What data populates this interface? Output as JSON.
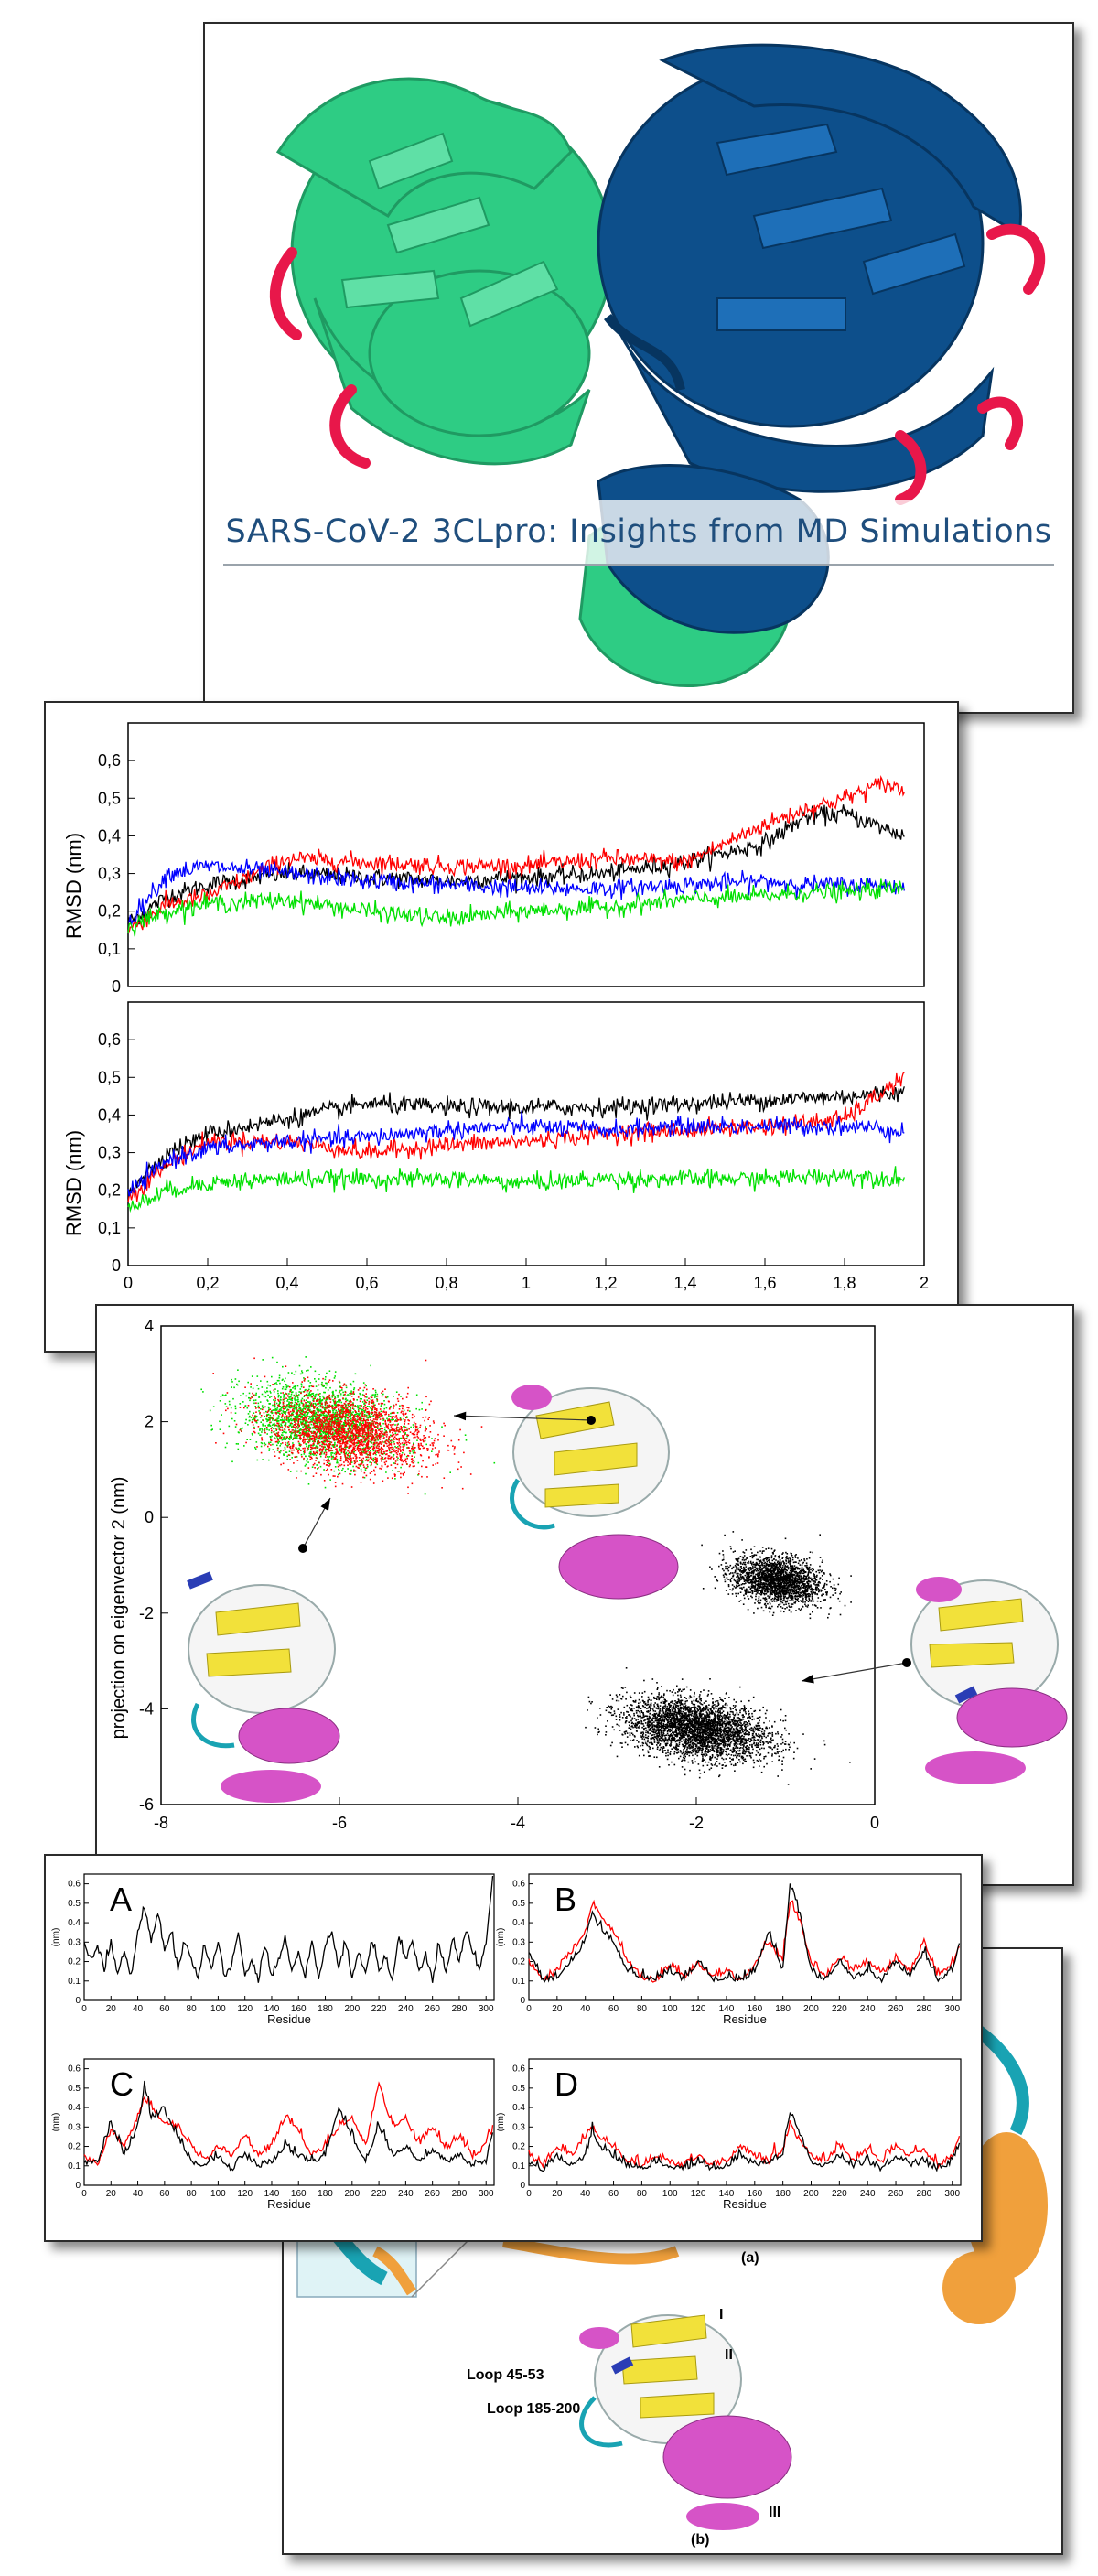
{
  "cover": {
    "title": "SARS-CoV-2 3CLpro: Insights from MD Simulations"
  },
  "colors": {
    "chain_a": "#2ecc84",
    "chain_b": "#0d4f8b",
    "loops": "#e8174a",
    "black_series": "#000000",
    "red_series": "#ff0000",
    "blue_series": "#0000ff",
    "green_series": "#00e000"
  },
  "rmsd": {
    "ylabel": "RMSD (nm)",
    "yticks": [
      "0",
      "0,1",
      "0,2",
      "0,3",
      "0,4",
      "0,5",
      "0,6"
    ],
    "xticks": [
      "0",
      "0,2",
      "0,4",
      "0,6",
      "0,8",
      "1",
      "1,2",
      "1,4",
      "1,6",
      "1,8",
      "2"
    ]
  },
  "pca": {
    "ylabel": "projection on eigenvector 2 (nm)",
    "yticks": [
      "4",
      "2",
      "0",
      "-2",
      "-4",
      "-6"
    ],
    "xticks": [
      "-8",
      "-6",
      "-4",
      "-2",
      "0"
    ]
  },
  "rmsf": {
    "ylabel": "(nm)",
    "xlabel": "Residue",
    "yticks": [
      "0",
      "0.1",
      "0.2",
      "0.3",
      "0.4",
      "0.5",
      "0.6"
    ],
    "xticks": [
      "0",
      "20",
      "40",
      "60",
      "80",
      "100",
      "120",
      "140",
      "160",
      "180",
      "200",
      "220",
      "240",
      "260",
      "280",
      "300"
    ],
    "panel_letters": [
      "A",
      "B",
      "C",
      "D"
    ]
  },
  "structure": {
    "caption_a": "(a)",
    "caption_b": "(b)",
    "loop1": "Loop 45-53",
    "loop2": "Loop 185-200",
    "domain_i": "I",
    "domain_ii": "II",
    "domain_iii": "III"
  },
  "chart_data": [
    {
      "type": "line",
      "title": "",
      "ylabel": "RMSD (nm)",
      "xlabel": "",
      "ylim": [
        0,
        0.7
      ],
      "xlim": [
        0,
        2
      ],
      "series": [
        {
          "color": "black",
          "x": [
            0,
            0.1,
            0.2,
            0.4,
            0.6,
            0.8,
            1.0,
            1.2,
            1.4,
            1.6,
            1.7,
            1.8,
            1.9,
            1.95
          ],
          "values": [
            0.17,
            0.24,
            0.27,
            0.3,
            0.29,
            0.28,
            0.29,
            0.3,
            0.33,
            0.38,
            0.45,
            0.46,
            0.42,
            0.4
          ]
        },
        {
          "color": "red",
          "x": [
            0,
            0.1,
            0.2,
            0.4,
            0.6,
            0.8,
            1.0,
            1.2,
            1.4,
            1.6,
            1.7,
            1.8,
            1.9,
            1.95
          ],
          "values": [
            0.15,
            0.22,
            0.24,
            0.34,
            0.33,
            0.32,
            0.32,
            0.34,
            0.33,
            0.43,
            0.47,
            0.5,
            0.54,
            0.52
          ]
        },
        {
          "color": "blue",
          "x": [
            0,
            0.1,
            0.2,
            0.4,
            0.6,
            0.8,
            1.0,
            1.2,
            1.4,
            1.6,
            1.7,
            1.8,
            1.9,
            1.95
          ],
          "values": [
            0.17,
            0.3,
            0.32,
            0.3,
            0.28,
            0.27,
            0.26,
            0.26,
            0.27,
            0.28,
            0.27,
            0.27,
            0.27,
            0.26
          ]
        },
        {
          "color": "green",
          "x": [
            0,
            0.1,
            0.2,
            0.4,
            0.6,
            0.8,
            1.0,
            1.2,
            1.4,
            1.6,
            1.7,
            1.8,
            1.9,
            1.95
          ],
          "values": [
            0.16,
            0.2,
            0.22,
            0.23,
            0.2,
            0.18,
            0.2,
            0.21,
            0.23,
            0.24,
            0.25,
            0.25,
            0.26,
            0.26
          ]
        }
      ]
    },
    {
      "type": "line",
      "title": "",
      "ylabel": "RMSD (nm)",
      "xlabel": "",
      "ylim": [
        0,
        0.7
      ],
      "xlim": [
        0,
        2
      ],
      "series": [
        {
          "color": "black",
          "x": [
            0,
            0.1,
            0.2,
            0.4,
            0.6,
            0.8,
            1.0,
            1.2,
            1.4,
            1.6,
            1.8,
            1.95
          ],
          "values": [
            0.2,
            0.3,
            0.35,
            0.39,
            0.43,
            0.42,
            0.42,
            0.42,
            0.43,
            0.44,
            0.45,
            0.46
          ]
        },
        {
          "color": "red",
          "x": [
            0,
            0.1,
            0.2,
            0.4,
            0.6,
            0.8,
            1.0,
            1.2,
            1.4,
            1.6,
            1.8,
            1.95
          ],
          "values": [
            0.18,
            0.27,
            0.33,
            0.33,
            0.3,
            0.32,
            0.33,
            0.35,
            0.36,
            0.37,
            0.39,
            0.5
          ]
        },
        {
          "color": "blue",
          "x": [
            0,
            0.1,
            0.2,
            0.4,
            0.6,
            0.8,
            1.0,
            1.2,
            1.4,
            1.6,
            1.8,
            1.95
          ],
          "values": [
            0.19,
            0.28,
            0.31,
            0.33,
            0.34,
            0.36,
            0.37,
            0.36,
            0.37,
            0.37,
            0.37,
            0.36
          ]
        },
        {
          "color": "green",
          "x": [
            0,
            0.1,
            0.2,
            0.4,
            0.6,
            0.8,
            1.0,
            1.2,
            1.4,
            1.6,
            1.8,
            1.95
          ],
          "values": [
            0.15,
            0.2,
            0.22,
            0.23,
            0.23,
            0.23,
            0.22,
            0.23,
            0.23,
            0.23,
            0.24,
            0.23
          ]
        }
      ]
    },
    {
      "type": "scatter",
      "title": "",
      "ylabel": "projection on eigenvector 2 (nm)",
      "xlabel": "",
      "xlim": [
        -8,
        0
      ],
      "ylim": [
        -6,
        4
      ],
      "series": [
        {
          "color": "green",
          "center": [
            -6.2,
            2
          ],
          "spread": [
            0.9,
            0.8
          ]
        },
        {
          "color": "red",
          "center": [
            -5.9,
            1.8
          ],
          "spread": [
            0.9,
            0.8
          ]
        },
        {
          "color": "black",
          "center": [
            -2,
            -4.4
          ],
          "spread": [
            0.8,
            0.6
          ]
        },
        {
          "color": "black",
          "center": [
            -1.1,
            -1.3
          ],
          "spread": [
            0.5,
            0.5
          ]
        }
      ]
    },
    {
      "type": "line",
      "title": "A",
      "xlabel": "Residue",
      "ylabel": "(nm)",
      "xlim": [
        0,
        306
      ],
      "ylim": [
        0,
        0.65
      ],
      "series": [
        {
          "color": "black",
          "x": [
            0,
            5,
            10,
            15,
            20,
            25,
            30,
            35,
            40,
            45,
            50,
            55,
            60,
            65,
            70,
            75,
            80,
            85,
            90,
            95,
            100,
            105,
            110,
            115,
            120,
            125,
            130,
            135,
            140,
            145,
            150,
            155,
            160,
            165,
            170,
            175,
            180,
            185,
            190,
            195,
            200,
            205,
            210,
            215,
            220,
            225,
            230,
            235,
            240,
            245,
            250,
            255,
            260,
            265,
            270,
            275,
            280,
            285,
            290,
            295,
            300,
            305
          ],
          "values": [
            0.3,
            0.2,
            0.28,
            0.15,
            0.3,
            0.12,
            0.25,
            0.12,
            0.35,
            0.48,
            0.3,
            0.45,
            0.25,
            0.35,
            0.15,
            0.3,
            0.2,
            0.12,
            0.28,
            0.15,
            0.3,
            0.1,
            0.18,
            0.35,
            0.12,
            0.2,
            0.1,
            0.28,
            0.12,
            0.2,
            0.32,
            0.15,
            0.25,
            0.12,
            0.3,
            0.1,
            0.28,
            0.35,
            0.15,
            0.3,
            0.12,
            0.25,
            0.12,
            0.3,
            0.15,
            0.2,
            0.1,
            0.32,
            0.2,
            0.3,
            0.15,
            0.22,
            0.1,
            0.28,
            0.15,
            0.3,
            0.2,
            0.35,
            0.25,
            0.15,
            0.3,
            0.62
          ]
        }
      ]
    },
    {
      "type": "line",
      "title": "B",
      "xlabel": "Residue",
      "ylabel": "(nm)",
      "xlim": [
        0,
        306
      ],
      "ylim": [
        0,
        0.65
      ],
      "series": [
        {
          "color": "black",
          "x": [
            0,
            10,
            20,
            30,
            40,
            45,
            50,
            60,
            70,
            80,
            90,
            100,
            110,
            120,
            130,
            140,
            150,
            160,
            170,
            180,
            185,
            190,
            200,
            210,
            220,
            230,
            240,
            250,
            260,
            270,
            280,
            290,
            300,
            305
          ],
          "values": [
            0.25,
            0.1,
            0.12,
            0.2,
            0.3,
            0.45,
            0.38,
            0.3,
            0.15,
            0.12,
            0.1,
            0.15,
            0.1,
            0.2,
            0.1,
            0.12,
            0.1,
            0.15,
            0.35,
            0.15,
            0.6,
            0.5,
            0.15,
            0.1,
            0.2,
            0.12,
            0.15,
            0.1,
            0.2,
            0.12,
            0.25,
            0.1,
            0.15,
            0.3
          ]
        },
        {
          "color": "red",
          "x": [
            0,
            10,
            20,
            30,
            40,
            45,
            50,
            60,
            70,
            80,
            90,
            100,
            110,
            120,
            130,
            140,
            150,
            160,
            170,
            180,
            185,
            190,
            200,
            210,
            220,
            230,
            240,
            250,
            260,
            270,
            280,
            290,
            300,
            305
          ],
          "values": [
            0.2,
            0.1,
            0.15,
            0.25,
            0.35,
            0.5,
            0.45,
            0.35,
            0.2,
            0.12,
            0.1,
            0.18,
            0.12,
            0.18,
            0.12,
            0.15,
            0.1,
            0.18,
            0.3,
            0.2,
            0.5,
            0.45,
            0.2,
            0.12,
            0.22,
            0.15,
            0.2,
            0.12,
            0.22,
            0.15,
            0.3,
            0.12,
            0.18,
            0.28
          ]
        }
      ]
    },
    {
      "type": "line",
      "title": "C",
      "xlabel": "Residue",
      "ylabel": "(nm)",
      "xlim": [
        0,
        306
      ],
      "ylim": [
        0,
        0.65
      ],
      "series": [
        {
          "color": "black",
          "x": [
            0,
            10,
            20,
            30,
            40,
            45,
            50,
            60,
            70,
            80,
            90,
            100,
            110,
            120,
            130,
            140,
            150,
            160,
            170,
            180,
            190,
            200,
            210,
            220,
            230,
            240,
            250,
            260,
            270,
            280,
            290,
            300,
            305
          ],
          "values": [
            0.1,
            0.12,
            0.32,
            0.15,
            0.3,
            0.5,
            0.35,
            0.38,
            0.25,
            0.12,
            0.1,
            0.15,
            0.08,
            0.15,
            0.1,
            0.12,
            0.2,
            0.15,
            0.12,
            0.15,
            0.4,
            0.25,
            0.12,
            0.3,
            0.15,
            0.2,
            0.12,
            0.18,
            0.12,
            0.15,
            0.1,
            0.12,
            0.28
          ]
        },
        {
          "color": "red",
          "x": [
            0,
            10,
            20,
            30,
            40,
            45,
            50,
            60,
            70,
            80,
            90,
            100,
            110,
            120,
            130,
            140,
            150,
            160,
            170,
            180,
            190,
            200,
            210,
            220,
            230,
            240,
            250,
            260,
            270,
            280,
            290,
            300,
            305
          ],
          "values": [
            0.15,
            0.1,
            0.28,
            0.2,
            0.35,
            0.45,
            0.4,
            0.32,
            0.3,
            0.2,
            0.12,
            0.2,
            0.15,
            0.25,
            0.15,
            0.2,
            0.35,
            0.28,
            0.15,
            0.2,
            0.3,
            0.35,
            0.2,
            0.52,
            0.3,
            0.35,
            0.2,
            0.3,
            0.18,
            0.25,
            0.15,
            0.2,
            0.28
          ]
        }
      ]
    },
    {
      "type": "line",
      "title": "D",
      "xlabel": "Residue",
      "ylabel": "(nm)",
      "xlim": [
        0,
        306
      ],
      "ylim": [
        0,
        0.65
      ],
      "series": [
        {
          "color": "black",
          "x": [
            0,
            10,
            20,
            30,
            40,
            45,
            50,
            60,
            70,
            80,
            90,
            100,
            110,
            120,
            130,
            140,
            150,
            160,
            170,
            180,
            185,
            190,
            200,
            210,
            220,
            230,
            240,
            250,
            260,
            270,
            280,
            290,
            300,
            305
          ],
          "values": [
            0.12,
            0.08,
            0.15,
            0.1,
            0.15,
            0.28,
            0.2,
            0.15,
            0.1,
            0.08,
            0.12,
            0.1,
            0.08,
            0.12,
            0.08,
            0.1,
            0.15,
            0.1,
            0.12,
            0.15,
            0.38,
            0.3,
            0.12,
            0.1,
            0.15,
            0.1,
            0.12,
            0.08,
            0.15,
            0.1,
            0.12,
            0.08,
            0.12,
            0.2
          ]
        },
        {
          "color": "red",
          "x": [
            0,
            10,
            20,
            30,
            40,
            45,
            50,
            60,
            70,
            80,
            90,
            100,
            110,
            120,
            130,
            140,
            150,
            160,
            170,
            180,
            185,
            190,
            200,
            210,
            220,
            230,
            240,
            250,
            260,
            270,
            280,
            290,
            300,
            305
          ],
          "values": [
            0.15,
            0.1,
            0.2,
            0.15,
            0.25,
            0.3,
            0.25,
            0.2,
            0.12,
            0.1,
            0.15,
            0.12,
            0.1,
            0.15,
            0.1,
            0.12,
            0.2,
            0.15,
            0.12,
            0.18,
            0.32,
            0.25,
            0.15,
            0.12,
            0.2,
            0.12,
            0.18,
            0.12,
            0.2,
            0.15,
            0.18,
            0.1,
            0.15,
            0.25
          ]
        }
      ]
    }
  ]
}
